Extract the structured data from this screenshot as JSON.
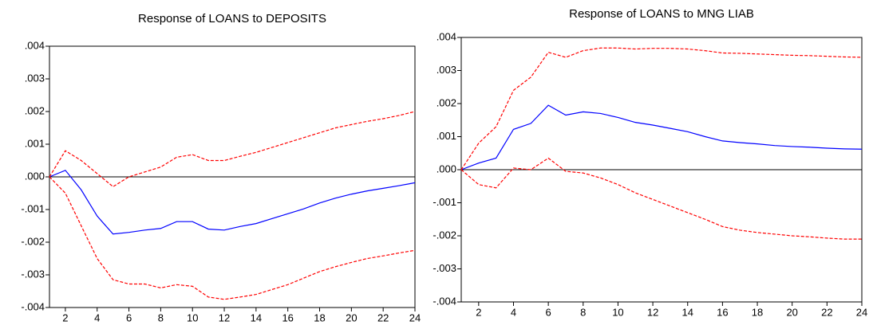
{
  "chart_data": [
    {
      "type": "line",
      "title": "Response of LOANS to DEPOSITS",
      "x": [
        1,
        2,
        3,
        4,
        5,
        6,
        7,
        8,
        9,
        10,
        11,
        12,
        13,
        14,
        15,
        16,
        17,
        18,
        19,
        20,
        21,
        22,
        23,
        24
      ],
      "series": [
        {
          "color": "#0000ff",
          "dashed": false,
          "values": [
            0,
            0.0002,
            -0.0004,
            -0.0012,
            -0.00175,
            -0.0017,
            -0.00163,
            -0.00158,
            -0.00137,
            -0.00137,
            -0.0016,
            -0.00163,
            -0.00152,
            -0.00143,
            -0.00128,
            -0.00113,
            -0.00098,
            -0.0008,
            -0.00065,
            -0.00053,
            -0.00043,
            -0.00035,
            -0.00027,
            -0.00018
          ]
        },
        {
          "color": "#ff0000",
          "dashed": true,
          "values": [
            0,
            0.0008,
            0.0005,
            0.0001,
            -0.0003,
            0,
            0.00015,
            0.0003,
            0.0006,
            0.00068,
            0.0005,
            0.0005,
            0.00063,
            0.00075,
            0.0009,
            0.00105,
            0.0012,
            0.00135,
            0.0015,
            0.0016,
            0.0017,
            0.00178,
            0.00188,
            0.002
          ]
        },
        {
          "color": "#ff0000",
          "dashed": true,
          "values": [
            0,
            -0.0005,
            -0.0015,
            -0.0025,
            -0.00315,
            -0.00328,
            -0.00328,
            -0.0034,
            -0.0033,
            -0.00335,
            -0.00368,
            -0.00375,
            -0.00368,
            -0.0036,
            -0.00345,
            -0.0033,
            -0.0031,
            -0.0029,
            -0.00275,
            -0.00262,
            -0.0025,
            -0.00242,
            -0.00233,
            -0.00225
          ]
        }
      ],
      "xlim": [
        1,
        24
      ],
      "xticks": [
        2,
        4,
        6,
        8,
        10,
        12,
        14,
        16,
        18,
        20,
        22,
        24
      ],
      "ylim": [
        -0.004,
        0.004
      ],
      "yticks": [
        {
          "value": -0.004,
          "label": "-.004"
        },
        {
          "value": -0.003,
          "label": "-.003"
        },
        {
          "value": -0.002,
          "label": "-.002"
        },
        {
          "value": -0.001,
          "label": "-.001"
        },
        {
          "value": 0,
          "label": ".000"
        },
        {
          "value": 0.001,
          "label": ".001"
        },
        {
          "value": 0.002,
          "label": ".002"
        },
        {
          "value": 0.003,
          "label": ".003"
        },
        {
          "value": 0.004,
          "label": ".004"
        }
      ],
      "zero_line": true,
      "grid": false
    },
    {
      "type": "line",
      "title": "Response of LOANS to MNG LIAB",
      "x": [
        1,
        2,
        3,
        4,
        5,
        6,
        7,
        8,
        9,
        10,
        11,
        12,
        13,
        14,
        15,
        16,
        17,
        18,
        19,
        20,
        21,
        22,
        23,
        24
      ],
      "series": [
        {
          "color": "#0000ff",
          "dashed": false,
          "values": [
            0,
            0.0002,
            0.00035,
            0.00122,
            0.0014,
            0.00195,
            0.00165,
            0.00175,
            0.0017,
            0.00158,
            0.00143,
            0.00135,
            0.00125,
            0.00115,
            0.001,
            0.00087,
            0.00082,
            0.00078,
            0.00073,
            0.0007,
            0.00068,
            0.00065,
            0.00063,
            0.00062
          ]
        },
        {
          "color": "#ff0000",
          "dashed": true,
          "values": [
            0,
            0.0008,
            0.0013,
            0.0024,
            0.0028,
            0.00355,
            0.0034,
            0.0036,
            0.00368,
            0.00368,
            0.00365,
            0.00367,
            0.00367,
            0.00365,
            0.0036,
            0.00353,
            0.00352,
            0.0035,
            0.00348,
            0.00346,
            0.00345,
            0.00343,
            0.00341,
            0.0034
          ]
        },
        {
          "color": "#ff0000",
          "dashed": true,
          "values": [
            0,
            -0.00045,
            -0.00055,
            5e-05,
            0,
            0.00035,
            -5e-05,
            -0.0001,
            -0.00025,
            -0.00045,
            -0.0007,
            -0.0009,
            -0.0011,
            -0.0013,
            -0.0015,
            -0.00172,
            -0.00183,
            -0.0019,
            -0.00195,
            -0.002,
            -0.00203,
            -0.00207,
            -0.0021,
            -0.0021
          ]
        }
      ],
      "xlim": [
        1,
        24
      ],
      "xticks": [
        2,
        4,
        6,
        8,
        10,
        12,
        14,
        16,
        18,
        20,
        22,
        24
      ],
      "ylim": [
        -0.004,
        0.004
      ],
      "yticks": [
        {
          "value": -0.004,
          "label": "-.004"
        },
        {
          "value": -0.003,
          "label": "-.003"
        },
        {
          "value": -0.002,
          "label": "-.002"
        },
        {
          "value": -0.001,
          "label": "-.001"
        },
        {
          "value": 0,
          "label": ".000"
        },
        {
          "value": 0.001,
          "label": ".001"
        },
        {
          "value": 0.002,
          "label": ".002"
        },
        {
          "value": 0.003,
          "label": ".003"
        },
        {
          "value": 0.004,
          "label": ".004"
        }
      ],
      "zero_line": true,
      "grid": false
    }
  ]
}
